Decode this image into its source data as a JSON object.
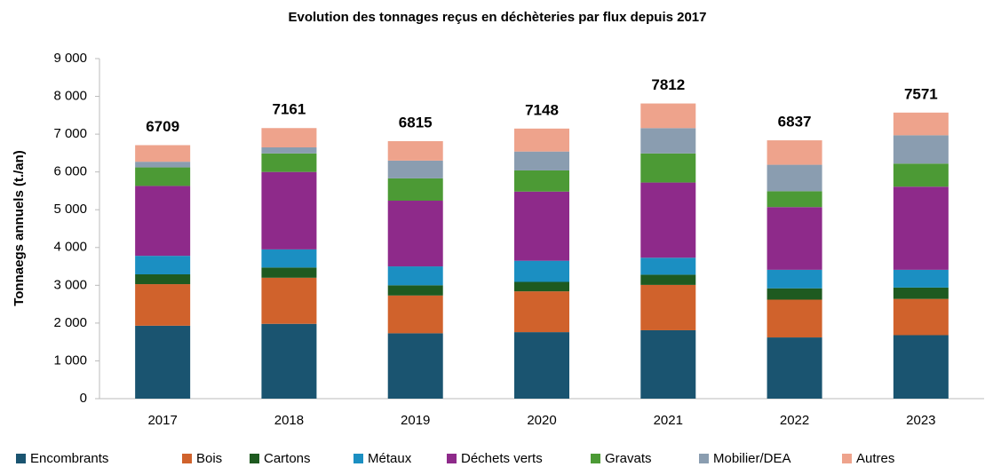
{
  "chart_data": {
    "type": "stacked_bar",
    "title": "Evolution des tonnages reçus en déchèteries par flux depuis 2017",
    "y_label": "Tonnaegs annuels (t./an)",
    "categories": [
      "2017",
      "2018",
      "2019",
      "2020",
      "2021",
      "2022",
      "2023"
    ],
    "series": [
      {
        "name": "Encombrants",
        "color": "#1a5470",
        "values": [
          1930,
          1980,
          1730,
          1760,
          1810,
          1620,
          1680
        ]
      },
      {
        "name": "Bois",
        "color": "#d0622c",
        "values": [
          1100,
          1220,
          1000,
          1080,
          1200,
          1000,
          960
        ]
      },
      {
        "name": "Cartons",
        "color": "#1e5a20",
        "values": [
          260,
          270,
          270,
          250,
          270,
          300,
          300
        ]
      },
      {
        "name": "Métaux",
        "color": "#1b8fc2",
        "values": [
          490,
          480,
          500,
          560,
          450,
          490,
          470
        ]
      },
      {
        "name": "Déchets verts",
        "color": "#8e2a8a",
        "values": [
          1850,
          2050,
          1740,
          1830,
          1990,
          1660,
          2200
        ]
      },
      {
        "name": "Gravats",
        "color": "#4c9a35",
        "values": [
          490,
          490,
          590,
          560,
          770,
          420,
          610
        ]
      },
      {
        "name": "Mobilier/DEA",
        "color": "#8a9db0",
        "values": [
          150,
          160,
          470,
          500,
          670,
          700,
          750
        ]
      },
      {
        "name": "Autres",
        "color": "#eea38c",
        "values": [
          439,
          511,
          515,
          608,
          652,
          647,
          601
        ]
      }
    ],
    "totals": [
      6709,
      7161,
      6815,
      7148,
      7812,
      6837,
      7571
    ],
    "ylim": [
      0,
      9000
    ],
    "yticks": [
      0,
      {
        "value": 1000,
        "label": "1 000"
      },
      {
        "value": 2000,
        "label": "2 000"
      },
      {
        "value": 3000,
        "label": "3 000"
      },
      {
        "value": 4000,
        "label": "4 000"
      },
      {
        "value": 5000,
        "label": "5 000"
      },
      {
        "value": 6000,
        "label": "6 000"
      },
      {
        "value": 7000,
        "label": "7 000"
      },
      {
        "value": 8000,
        "label": "8 000"
      },
      {
        "value": 9000,
        "label": "9 000"
      }
    ],
    "grid": false
  }
}
